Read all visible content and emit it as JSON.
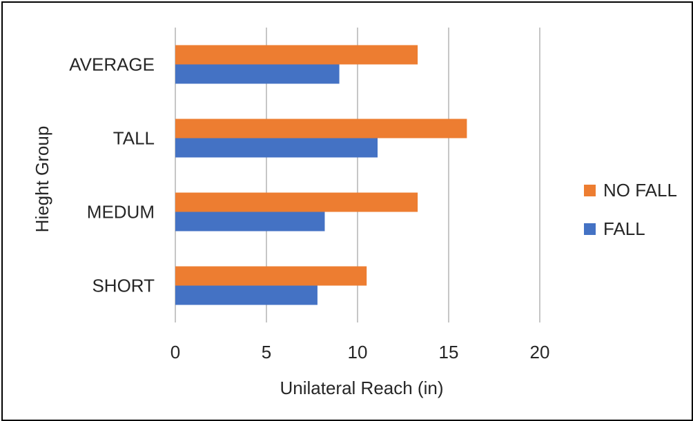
{
  "chart_data": {
    "type": "bar",
    "orientation": "horizontal",
    "categories": [
      "SHORT",
      "MEDUM",
      "TALL",
      "AVERAGE"
    ],
    "series": [
      {
        "name": "NO FALL",
        "color": "#ED7D31",
        "values": [
          10.5,
          13.3,
          16.0,
          13.3
        ]
      },
      {
        "name": "FALL",
        "color": "#4472C4",
        "values": [
          7.8,
          8.2,
          11.1,
          9.0
        ]
      }
    ],
    "xticks": [
      0,
      5,
      10,
      15,
      20
    ],
    "xlim": [
      0,
      20
    ],
    "xlabel": "Unilateral Reach (in)",
    "ylabel": "Hieght Group",
    "grid": "vertical",
    "legend": {
      "position": "right",
      "items": [
        "NO FALL",
        "FALL"
      ]
    },
    "gridline_color": "#8C8C8C"
  }
}
